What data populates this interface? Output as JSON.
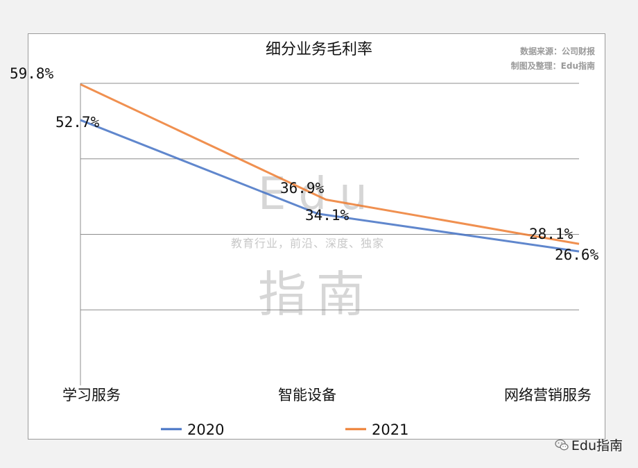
{
  "chart_data": {
    "type": "line",
    "title": "细分业务毛利率",
    "categories": [
      "学习服务",
      "智能设备",
      "网络营销服务"
    ],
    "series": [
      {
        "name": "2020",
        "values": [
          52.7,
          34.1,
          26.6
        ],
        "labels": [
          "52.7%",
          "34.1%",
          "26.6%"
        ],
        "color": "#4472c4"
      },
      {
        "name": "2021",
        "values": [
          59.8,
          36.9,
          28.1
        ],
        "labels": [
          "59.8%",
          "36.9%",
          "28.1%"
        ],
        "color": "#ed7d31"
      }
    ],
    "ylim": [
      0,
      60
    ],
    "grid": true,
    "legend": "bottom",
    "xlabel": "",
    "ylabel": ""
  },
  "source": {
    "line1": "数据来源：公司财报",
    "line2": "制图及整理：Edu指南"
  },
  "watermark": {
    "brand": "Edu",
    "tagline": "教育行业，前沿、深度、独家",
    "cn": "指南"
  },
  "footer": {
    "brand": "Edu指南"
  }
}
